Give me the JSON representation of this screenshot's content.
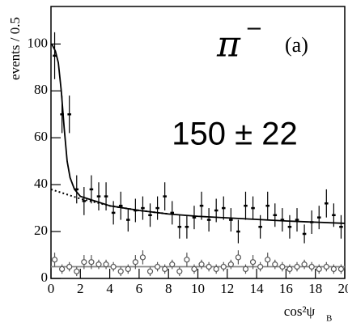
{
  "chart_data": {
    "type": "errorbar",
    "y_label": "events / 0.5",
    "x_label": "cos²ψ",
    "x_label_sub": "B",
    "annotations": [
      "π",
      "−",
      "(a)",
      "150 ± 22"
    ],
    "xlim": [
      0,
      20
    ],
    "ylim": [
      0,
      116
    ],
    "xticks": [
      0,
      2,
      4,
      6,
      8,
      10,
      12,
      14,
      16,
      18,
      20
    ],
    "yticks": [
      0,
      20,
      40,
      60,
      80,
      100
    ],
    "series": [
      {
        "color": "#000000",
        "marker": "cross",
        "x": [
          0.25,
          0.75,
          1.25,
          1.75,
          2.25,
          2.75,
          3.25,
          3.75,
          4.25,
          4.75,
          5.25,
          5.75,
          6.25,
          6.75,
          7.25,
          7.75,
          8.25,
          8.75,
          9.25,
          9.75,
          10.25,
          10.75,
          11.25,
          11.75,
          12.25,
          12.75,
          13.25,
          13.75,
          14.25,
          14.75,
          15.25,
          15.75,
          16.25,
          16.75,
          17.25,
          17.75,
          18.25,
          18.75,
          19.25,
          19.75
        ],
        "values": [
          95,
          70,
          70,
          38,
          33,
          38,
          35,
          35,
          28,
          31,
          25,
          29,
          30,
          27,
          30,
          35,
          28,
          22,
          22,
          26,
          31,
          25,
          29,
          30,
          25,
          20,
          31,
          30,
          22,
          31,
          27,
          25,
          22,
          25,
          19,
          24,
          26,
          32,
          27,
          22
        ],
        "errors": [
          10,
          8,
          8,
          6,
          6,
          6,
          6,
          6,
          5,
          6,
          5,
          5,
          5,
          5,
          5,
          6,
          5,
          5,
          5,
          5,
          6,
          5,
          5,
          5,
          5,
          5,
          6,
          5,
          5,
          6,
          5,
          5,
          5,
          5,
          4,
          5,
          5,
          6,
          5,
          5
        ]
      },
      {
        "color": "#555555",
        "marker": "circle",
        "x": [
          0.25,
          0.75,
          1.25,
          1.75,
          2.25,
          2.75,
          3.25,
          3.75,
          4.25,
          4.75,
          5.25,
          5.75,
          6.25,
          6.75,
          7.25,
          7.75,
          8.25,
          8.75,
          9.25,
          9.75,
          10.25,
          10.75,
          11.25,
          11.75,
          12.25,
          12.75,
          13.25,
          13.75,
          14.25,
          14.75,
          15.25,
          15.75,
          16.25,
          16.75,
          17.25,
          17.75,
          18.25,
          18.75,
          19.25,
          19.75
        ],
        "values": [
          8,
          4,
          5,
          3,
          7,
          7,
          6,
          6,
          5,
          3,
          4,
          7,
          9,
          3,
          5,
          4,
          6,
          3,
          8,
          4,
          6,
          5,
          4,
          5,
          6,
          9,
          4,
          7,
          5,
          8,
          6,
          5,
          4,
          5,
          6,
          5,
          4,
          5,
          4,
          4
        ],
        "errors": [
          3,
          2,
          2,
          2,
          3,
          3,
          2,
          2,
          2,
          2,
          2,
          3,
          3,
          2,
          2,
          2,
          2,
          2,
          3,
          2,
          2,
          2,
          2,
          2,
          2,
          3,
          2,
          3,
          2,
          3,
          2,
          2,
          2,
          2,
          2,
          2,
          2,
          2,
          2,
          2
        ]
      }
    ],
    "curves": [
      {
        "style": "solid",
        "color": "#000000",
        "x": [
          0.05,
          0.3,
          0.5,
          0.7,
          0.9,
          1.1,
          1.3,
          1.6,
          2,
          3,
          4,
          6,
          8,
          10,
          13,
          16,
          20
        ],
        "values": [
          100,
          97,
          92,
          80,
          64,
          50,
          43,
          38,
          35,
          33,
          31,
          29,
          27.5,
          26.5,
          25.5,
          24.5,
          23.5
        ]
      },
      {
        "style": "dotted",
        "color": "#000000",
        "x": [
          0,
          1,
          2,
          3,
          4,
          6,
          8
        ],
        "values": [
          38,
          36,
          34,
          32.5,
          31,
          29,
          27.5
        ]
      },
      {
        "style": "solid",
        "color": "#888888",
        "x": [
          0,
          20
        ],
        "values": [
          5,
          5
        ]
      }
    ]
  }
}
